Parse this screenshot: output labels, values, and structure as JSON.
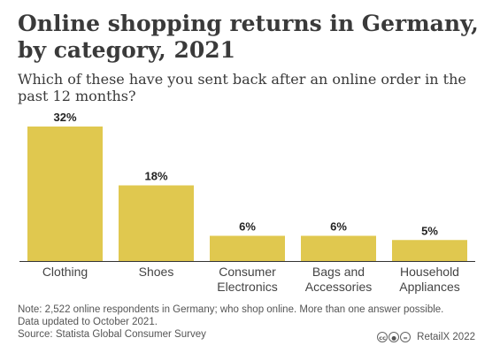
{
  "header": {
    "title": "Online shopping returns in Germany,\nby category, 2021",
    "subtitle": "Which of these have you sent back after an online order in the past 12 months?"
  },
  "chart_data": {
    "type": "bar",
    "title": "Online shopping returns in Germany, by category, 2021",
    "subtitle": "Which of these have you sent back after an online order in the past 12 months?",
    "categories": [
      [
        "Clothing"
      ],
      [
        "Shoes"
      ],
      [
        "Consumer",
        "Electronics"
      ],
      [
        "Bags and",
        "Accessories"
      ],
      [
        "Household",
        "Appliances"
      ]
    ],
    "values": [
      32,
      18,
      6,
      6,
      5
    ],
    "value_labels": [
      "32%",
      "18%",
      "6%",
      "6%",
      "5%"
    ],
    "unit": "%",
    "ylim": [
      0,
      32
    ],
    "bar_color": "#e0c84f",
    "axis_color": "#333333",
    "grid": false,
    "legend": "none"
  },
  "footer": {
    "note_line1": "Note: 2,522 online respondents in Germany; who shop online. More than one answer possible.",
    "note_line2": "Data updated to October 2021.",
    "source": "Source: Statista Global Consumer Survey",
    "credit": "RetailX 2022",
    "license_icons": [
      "cc",
      "by",
      "nd"
    ]
  }
}
